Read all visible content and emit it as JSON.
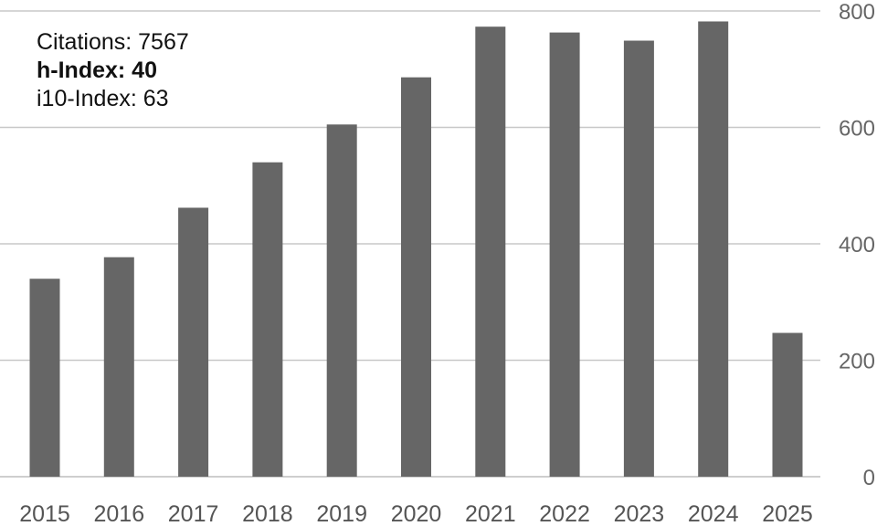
{
  "stats": {
    "citations": "Citations: 7567",
    "h_index": "h-Index: 40",
    "i10_index": "i10-Index: 63"
  },
  "chart_data": {
    "type": "bar",
    "title": "",
    "xlabel": "",
    "ylabel": "",
    "categories": [
      "2015",
      "2016",
      "2017",
      "2018",
      "2019",
      "2020",
      "2021",
      "2022",
      "2023",
      "2024",
      "2025"
    ],
    "values": [
      340,
      377,
      462,
      540,
      605,
      686,
      773,
      763,
      749,
      782,
      247
    ],
    "ylim": [
      0,
      800
    ],
    "yticks": [
      "0",
      "200",
      "400",
      "600",
      "800"
    ],
    "grid": true,
    "y_axis_side": "right",
    "bar_color": "#666666"
  }
}
